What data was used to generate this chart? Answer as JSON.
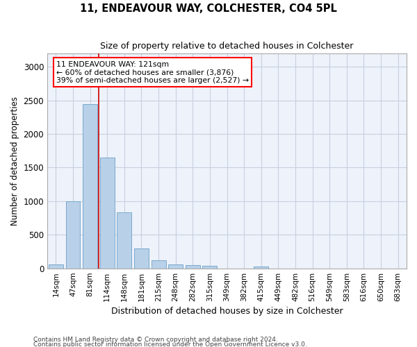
{
  "title1": "11, ENDEAVOUR WAY, COLCHESTER, CO4 5PL",
  "title2": "Size of property relative to detached houses in Colchester",
  "xlabel": "Distribution of detached houses by size in Colchester",
  "ylabel": "Number of detached properties",
  "categories": [
    "14sqm",
    "47sqm",
    "81sqm",
    "114sqm",
    "148sqm",
    "181sqm",
    "215sqm",
    "248sqm",
    "282sqm",
    "315sqm",
    "349sqm",
    "382sqm",
    "415sqm",
    "449sqm",
    "482sqm",
    "516sqm",
    "549sqm",
    "583sqm",
    "616sqm",
    "650sqm",
    "683sqm"
  ],
  "bar_heights": [
    60,
    1000,
    2450,
    1650,
    830,
    300,
    120,
    55,
    50,
    35,
    0,
    0,
    30,
    0,
    0,
    0,
    0,
    0,
    0,
    0,
    0
  ],
  "bar_color": "#b8d0e8",
  "bar_edge_color": "#7aaace",
  "bg_color": "#eef2fa",
  "grid_color": "#c8cfe0",
  "vline_x": 2.5,
  "vline_color": "#cc0000",
  "annotation_text": "11 ENDEAVOUR WAY: 121sqm\n← 60% of detached houses are smaller (3,876)\n39% of semi-detached houses are larger (2,527) →",
  "ylim": [
    0,
    3200
  ],
  "yticks": [
    0,
    500,
    1000,
    1500,
    2000,
    2500,
    3000
  ],
  "footnote1": "Contains HM Land Registry data © Crown copyright and database right 2024.",
  "footnote2": "Contains public sector information licensed under the Open Government Licence v3.0."
}
